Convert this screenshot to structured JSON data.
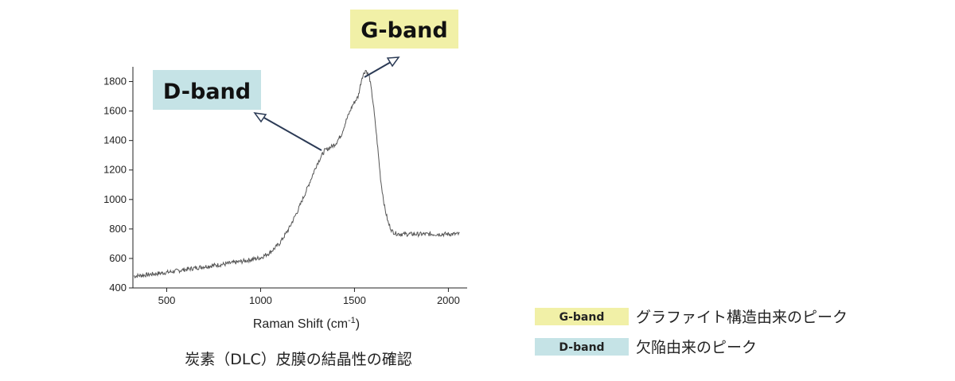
{
  "chart_data": {
    "type": "line",
    "title": "",
    "xlabel": "Raman Shift (cm",
    "xlabel_superscript": "-1",
    "xlabel_suffix": ")",
    "ylabel": "",
    "xlim": [
      320,
      2100
    ],
    "ylim": [
      400,
      1900
    ],
    "xticks": [
      500,
      1000,
      1500,
      2000
    ],
    "yticks": [
      400,
      600,
      800,
      1000,
      1200,
      1400,
      1600,
      1800
    ],
    "grid": false,
    "line_color": "#555555",
    "series": [
      {
        "x": [
          325,
          400,
          500,
          600,
          700,
          800,
          900,
          1000,
          1050,
          1100,
          1150,
          1200,
          1250,
          1300,
          1340,
          1380,
          1400,
          1430,
          1460,
          1490,
          1520,
          1540,
          1560,
          1580,
          1600,
          1620,
          1640,
          1660,
          1680,
          1700,
          1720,
          1750,
          1800,
          1900,
          2000,
          2060
        ],
        "y": [
          480,
          490,
          505,
          525,
          545,
          560,
          580,
          605,
          640,
          700,
          800,
          930,
          1080,
          1240,
          1330,
          1360,
          1380,
          1440,
          1550,
          1640,
          1700,
          1830,
          1880,
          1830,
          1650,
          1400,
          1130,
          950,
          840,
          785,
          770,
          765,
          765,
          765,
          765,
          765
        ]
      }
    ],
    "annotations": [
      {
        "label": "D-band",
        "points_at_x": 1345,
        "points_at_y": 1370,
        "color": "#c5e3e6"
      },
      {
        "label": "G-band",
        "points_at_x": 1560,
        "points_at_y": 1880,
        "color": "#f1f0a7"
      }
    ]
  },
  "caption": "炭素（DLC）皮膜の結晶性の確認",
  "legend": [
    {
      "key": "G-band",
      "description": "グラファイト構造由来のピーク",
      "color": "#f1f0a7"
    },
    {
      "key": "D-band",
      "description": "欠陥由来のピーク",
      "color": "#c5e3e6"
    }
  ]
}
